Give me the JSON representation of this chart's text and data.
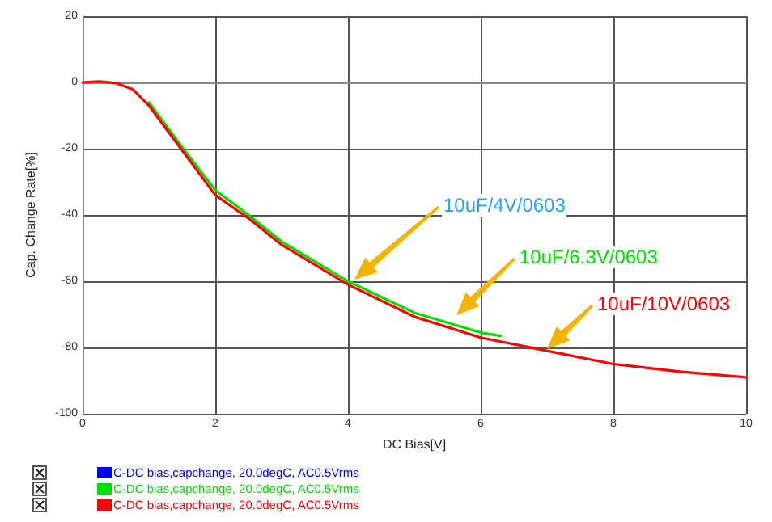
{
  "chart_data": {
    "type": "line",
    "xlabel": "DC Bias[V]",
    "ylabel": "Cap. Change Rate[%]",
    "xlim": [
      0,
      10
    ],
    "xticks": [
      0,
      2,
      4,
      6,
      8,
      10
    ],
    "ylim": [
      -100,
      20
    ],
    "yticks": [
      -100,
      -80,
      -60,
      -40,
      -20,
      0,
      20
    ],
    "grid": true,
    "legend": "bottom left",
    "marker": "none",
    "line_style": "solid",
    "series": [
      {
        "name": "C-DC bias,capchange, 20.0degC, AC0.5Vrms",
        "color": "#0000ff"
      },
      {
        "name": "C-DC bias,capchange, 20.0degC, AC0.5Vrms",
        "color": "#00e000",
        "x": [
          1,
          1.5,
          2,
          2.5,
          3,
          4,
          5,
          6,
          6.3
        ],
        "values": [
          -6,
          -19.5,
          -32.5,
          -40,
          -48,
          -60,
          -69.5,
          -75.5,
          -76.5
        ]
      },
      {
        "name": "C-DC bias,capchange, 20.0degC, AC0.5Vrms",
        "color": "#ff0000",
        "x": [
          0,
          0.25,
          0.5,
          0.75,
          1,
          1.5,
          2,
          2.5,
          3,
          4,
          5,
          6,
          7,
          8,
          9,
          10
        ],
        "values": [
          0,
          0.3,
          -0.2,
          -2,
          -7,
          -20.5,
          -34,
          -41,
          -49,
          -61,
          -70.7,
          -77,
          -81,
          -85,
          -87.3,
          -89
        ]
      }
    ],
    "annotations": [
      "10uF/4V/0603",
      "10uF/6.3V/0603",
      "10uF/10V/0603"
    ]
  }
}
